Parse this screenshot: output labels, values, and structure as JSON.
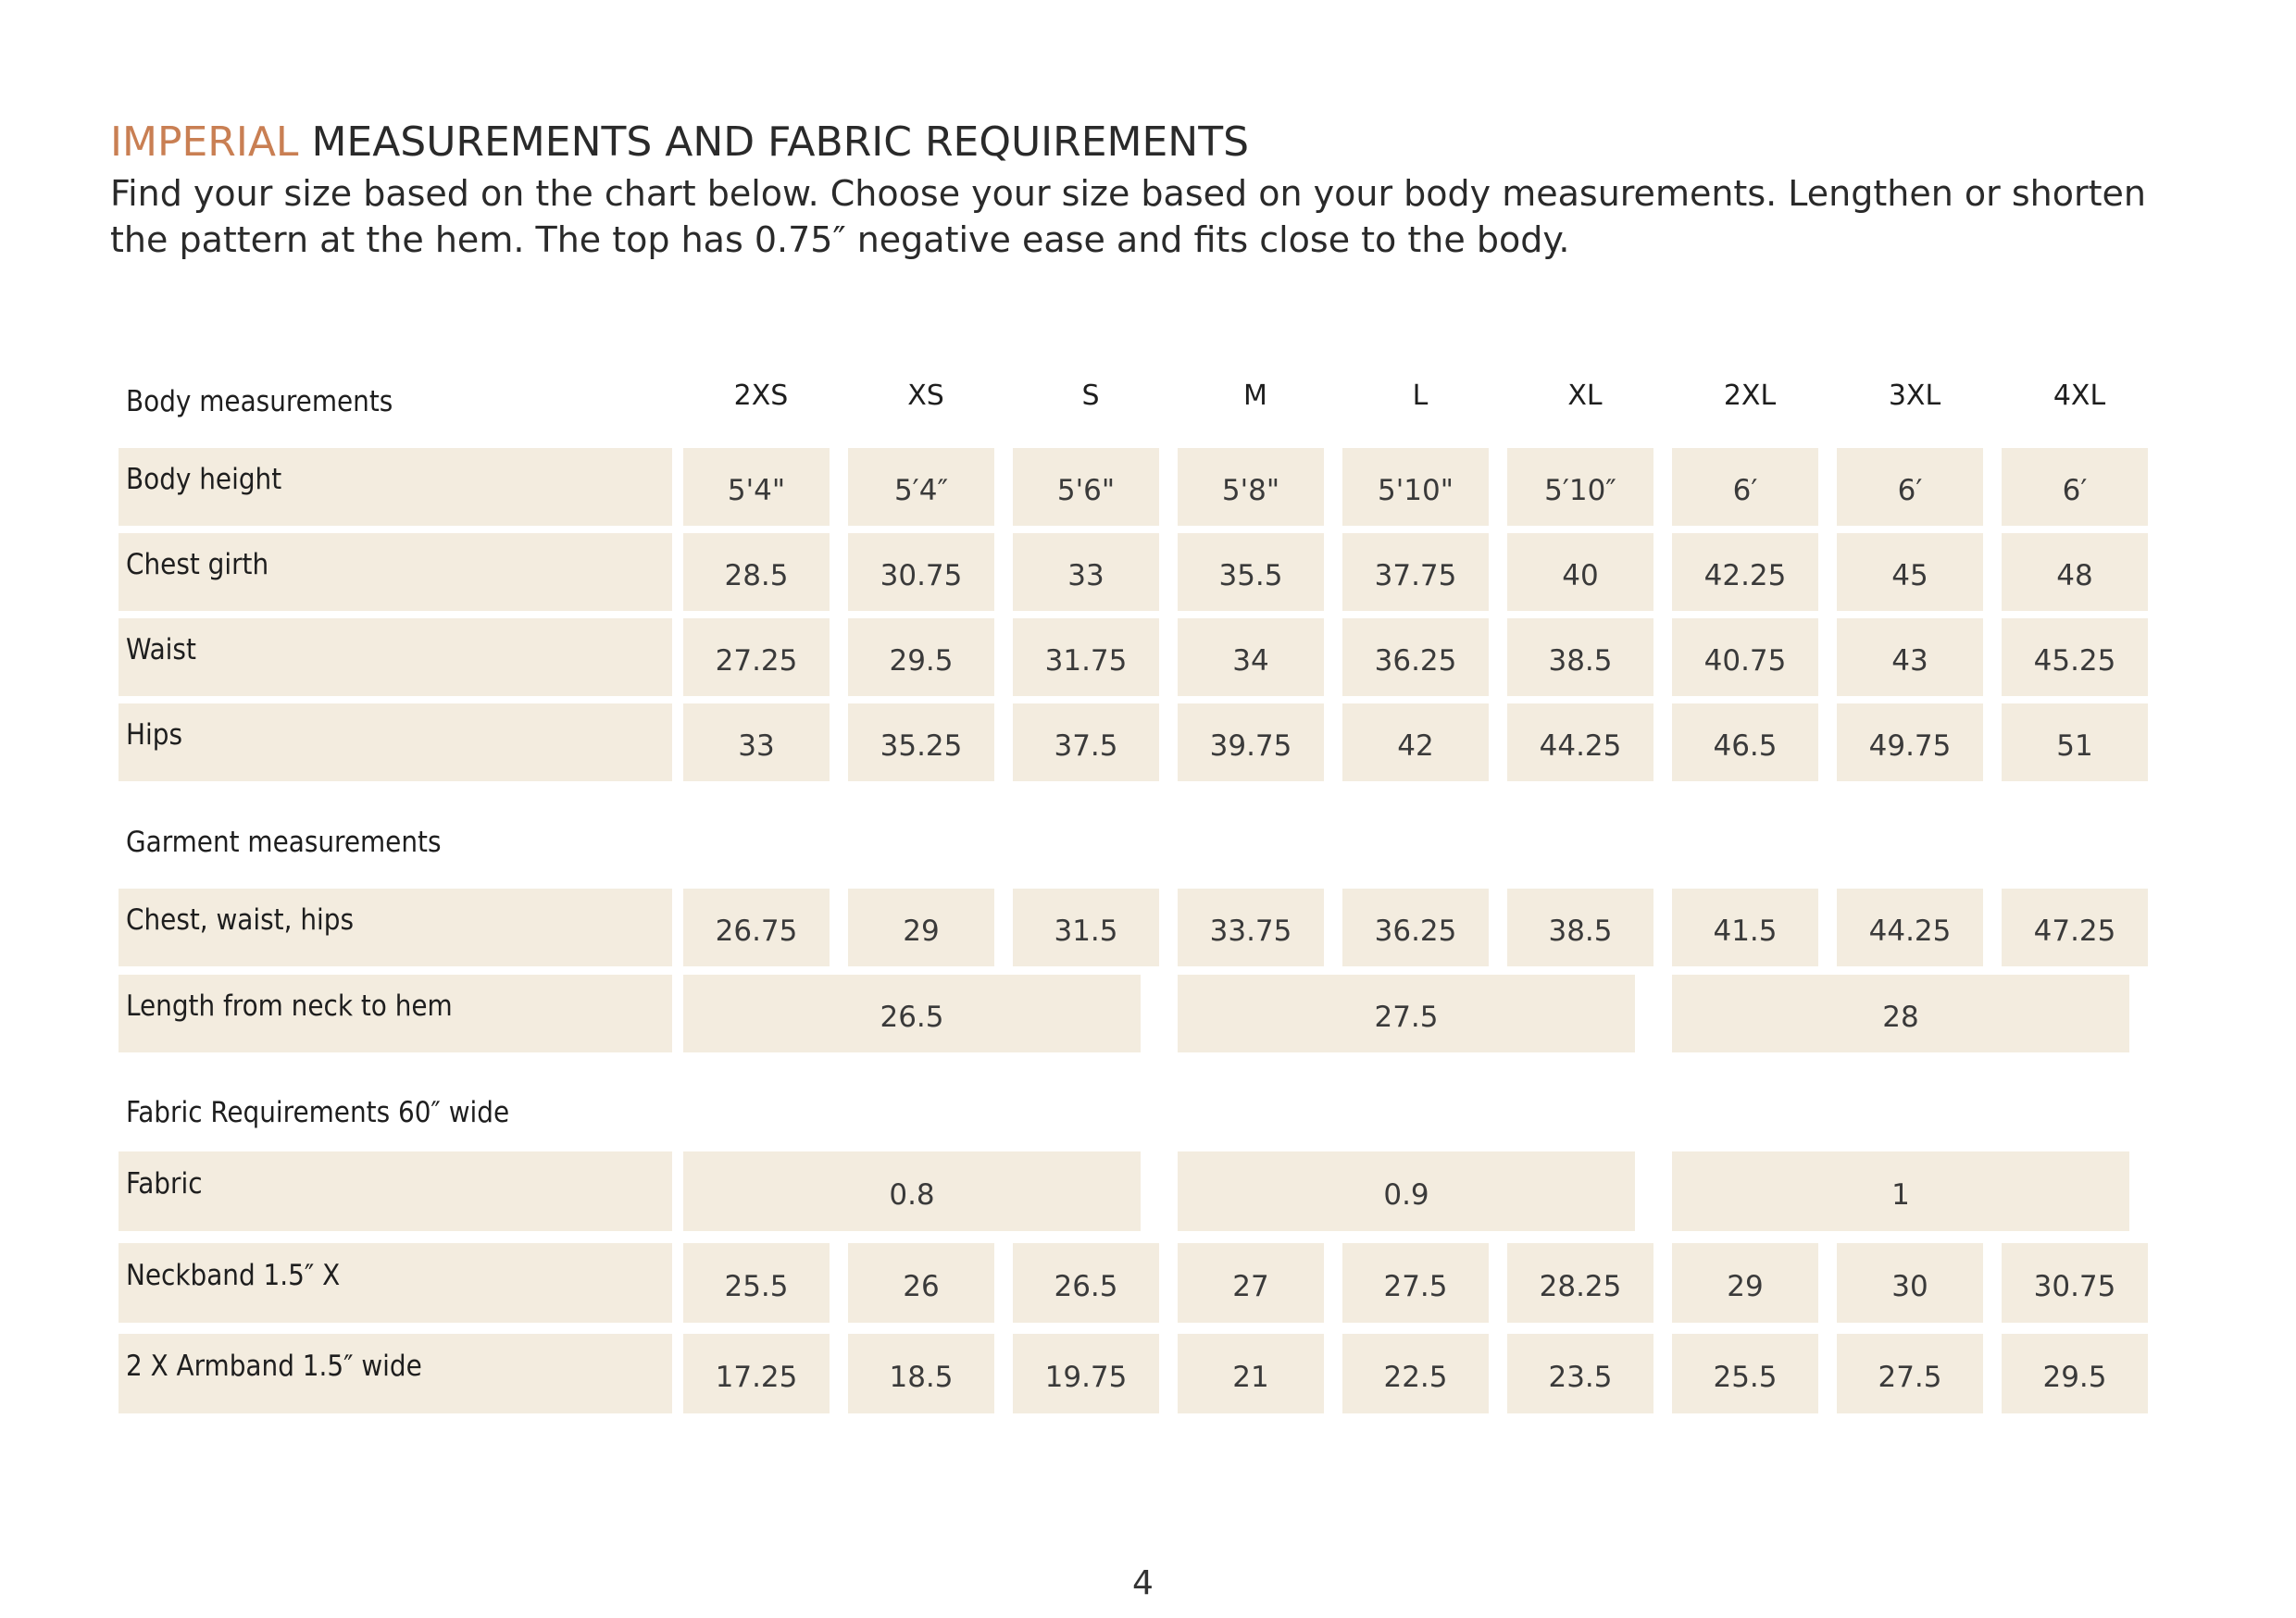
{
  "heading": {
    "accent": "IMPERIAL",
    "rest": "MEASUREMENTS AND FABRIC REQUIREMENTS"
  },
  "intro": "Find your size based on the chart below. Choose your size based on your body measurements. Lengthen or shorten the pattern at the hem. The top has 0.75″ negative ease and fits close to the body.",
  "sections": {
    "body": "Body measurements",
    "garment": "Garment measurements",
    "fabric": "Fabric Requirements 60″ wide"
  },
  "sizes": [
    "2XS",
    "XS",
    "S",
    "M",
    "L",
    "XL",
    "2XL",
    "3XL",
    "4XL"
  ],
  "rows": {
    "body_height": {
      "label": "Body height",
      "values": [
        "5'4\"",
        "5′4″",
        "5'6\"",
        "5'8\"",
        "5'10\"",
        "5′10″",
        "6′",
        "6′",
        "6′"
      ]
    },
    "chest_girth": {
      "label": "Chest girth",
      "values": [
        "28.5",
        "30.75",
        "33",
        "35.5",
        "37.75",
        "40",
        "42.25",
        "45",
        "48"
      ]
    },
    "waist": {
      "label": "Waist",
      "values": [
        "27.25",
        "29.5",
        "31.75",
        "34",
        "36.25",
        "38.5",
        "40.75",
        "43",
        "45.25"
      ]
    },
    "hips": {
      "label": "Hips",
      "values": [
        "33",
        "35.25",
        "37.5",
        "39.75",
        "42",
        "44.25",
        "46.5",
        "49.75",
        "51"
      ]
    },
    "chest_waist_hips": {
      "label": "Chest, waist, hips",
      "values": [
        "26.75",
        "29",
        "31.5",
        "33.75",
        "36.25",
        "38.5",
        "41.5",
        "44.25",
        "47.25"
      ]
    },
    "length": {
      "label": "Length from neck to hem",
      "values": [
        "26.5",
        "27.5",
        "28"
      ]
    },
    "fabric": {
      "label": "Fabric",
      "values": [
        "0.8",
        "0.9",
        "1"
      ]
    },
    "neckband": {
      "label": "Neckband 1.5″ X",
      "values": [
        "25.5",
        "26",
        "26.5",
        "27",
        "27.5",
        "28.25",
        "29",
        "30",
        "30.75"
      ]
    },
    "armband": {
      "label": "2 X Armband 1.5″ wide",
      "values": [
        "17.25",
        "18.5",
        "19.75",
        "21",
        "22.5",
        "23.5",
        "25.5",
        "27.5",
        "29.5"
      ]
    }
  },
  "page_number": "4"
}
